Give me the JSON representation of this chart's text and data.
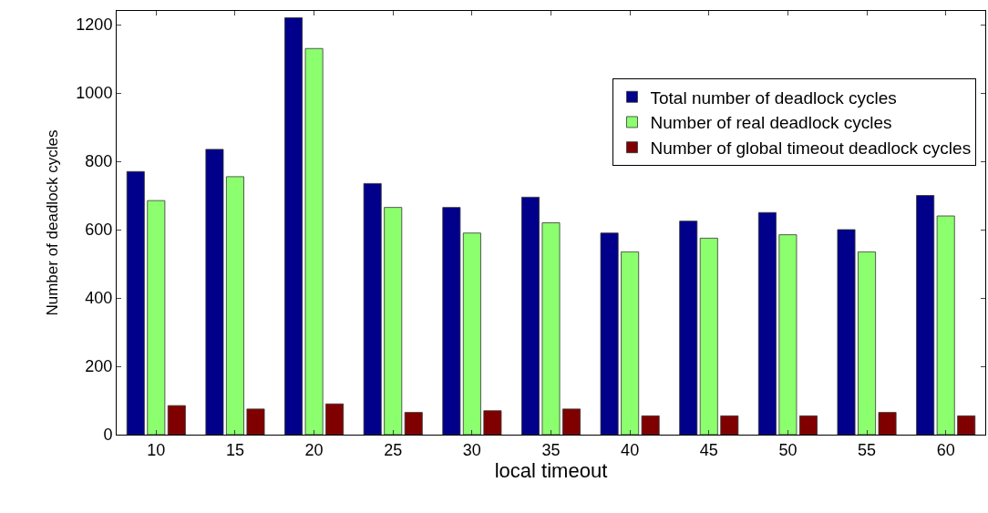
{
  "chart_data": {
    "type": "bar",
    "xlabel": "local timeout",
    "ylabel": "Number of deadlock cycles",
    "categories": [
      "10",
      "15",
      "20",
      "25",
      "30",
      "35",
      "40",
      "45",
      "50",
      "55",
      "60"
    ],
    "series": [
      {
        "name": "Total number of deadlock cycles",
        "color": "#00008b",
        "values": [
          770,
          835,
          1220,
          735,
          665,
          695,
          590,
          625,
          650,
          600,
          700
        ]
      },
      {
        "name": "Number of real deadlock cycles",
        "color": "#8cff6e",
        "values": [
          685,
          755,
          1130,
          665,
          590,
          620,
          535,
          575,
          585,
          535,
          640
        ]
      },
      {
        "name": "Number of global timeout deadlock cycles",
        "color": "#800000",
        "values": [
          85,
          75,
          90,
          65,
          70,
          75,
          55,
          55,
          55,
          65,
          55
        ]
      }
    ],
    "ylim": [
      0,
      1240
    ],
    "yticks": [
      0,
      200,
      400,
      600,
      800,
      1000,
      1200
    ],
    "legend": "top right"
  }
}
